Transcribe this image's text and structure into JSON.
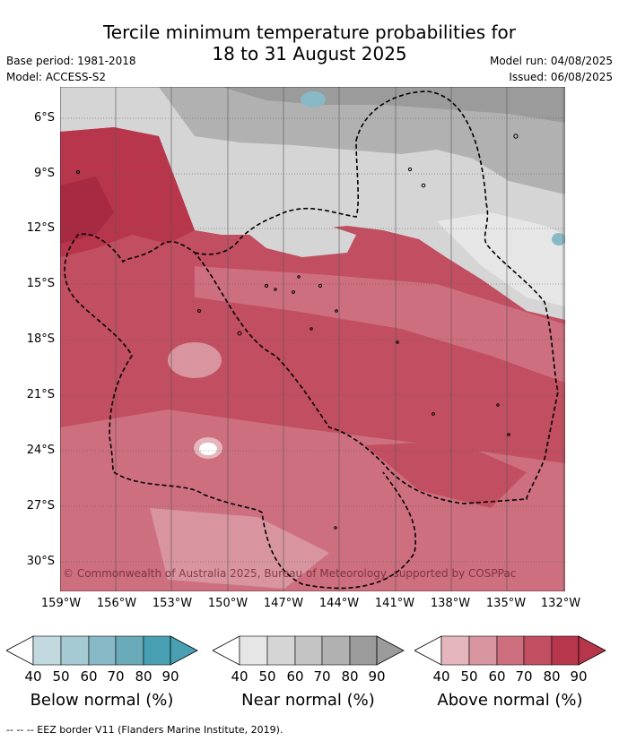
{
  "header": {
    "title_line1": "Tercile minimum temperature probabilities for",
    "title_line2": "18 to 31 August 2025",
    "base_period": "Base period: 1981-2018",
    "model": "Model: ACCESS-S2",
    "model_run": "Model run: 04/08/2025",
    "issued": "Issued: 06/08/2025"
  },
  "map": {
    "lat_labels": [
      "6°S",
      "9°S",
      "12°S",
      "15°S",
      "18°S",
      "21°S",
      "24°S",
      "27°S",
      "30°S"
    ],
    "lon_labels": [
      "159°W",
      "156°W",
      "153°W",
      "150°W",
      "147°W",
      "144°W",
      "141°W",
      "138°W",
      "135°W",
      "132°W"
    ],
    "copyright": "© Commonwealth of Australia 2025, Bureau of Meteorology, supported by COSPPac"
  },
  "legends": [
    {
      "title": "Below normal (%)",
      "ticks": [
        "40",
        "50",
        "60",
        "70",
        "80",
        "90"
      ],
      "colors": [
        "#c2d9e0",
        "#a6cad4",
        "#88b9c6",
        "#6aaab9",
        "#48a0b2"
      ]
    },
    {
      "title": "Near normal (%)",
      "ticks": [
        "40",
        "50",
        "60",
        "70",
        "80",
        "90"
      ],
      "colors": [
        "#e6e6e6",
        "#d5d5d5",
        "#c4c4c4",
        "#b1b1b1",
        "#9b9b9b"
      ]
    },
    {
      "title": "Above normal (%)",
      "ticks": [
        "40",
        "50",
        "60",
        "70",
        "80",
        "90"
      ],
      "colors": [
        "#e5b6bd",
        "#d8959f",
        "#cd6f7e",
        "#c24e61",
        "#b7364c"
      ]
    }
  ],
  "footer": "-- -- -- EEZ border V11 (Flanders Marine Institute, 2019)."
}
